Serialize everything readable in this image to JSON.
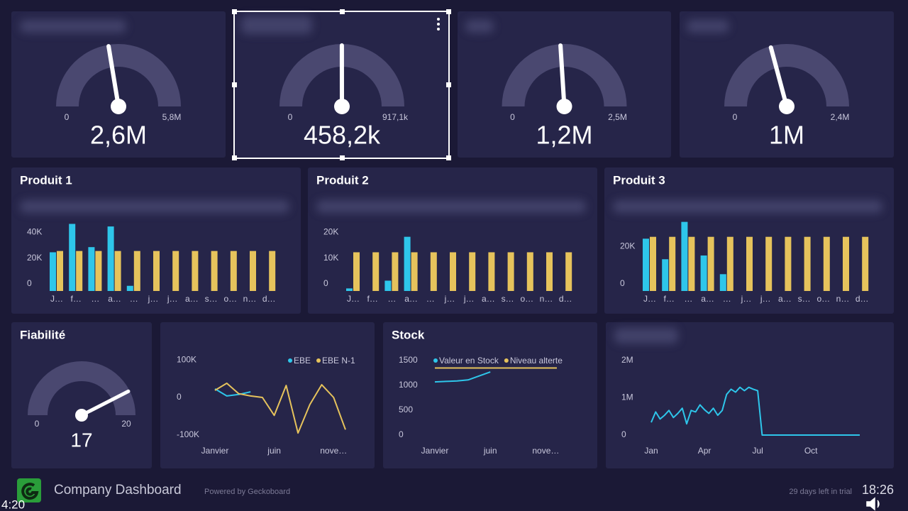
{
  "widgets": [
    {
      "type": "gauge",
      "value": 2600000,
      "value_label": "2,6M",
      "min": 0,
      "max": {
        "value": 5800000,
        "label": "5,8M"
      }
    },
    {
      "type": "gauge",
      "value": 458200,
      "value_label": "458,2k",
      "min": 0,
      "max": {
        "value": 917100,
        "label": "917,1k"
      }
    },
    {
      "type": "gauge",
      "value": 1200000,
      "value_label": "1,2M",
      "min": 0,
      "max": {
        "value": 2500000,
        "label": "2,5M"
      }
    },
    {
      "type": "gauge",
      "value": 1000000,
      "value_label": "1M",
      "min": 0,
      "max": {
        "value": 2400000,
        "label": "2,4M"
      }
    },
    {
      "type": "bar",
      "title": "Produit 1",
      "categories": [
        "J…",
        "f…",
        "…",
        "a…",
        "…",
        "j…",
        "j…",
        "a…",
        "s…",
        "o…",
        "n…",
        "d…"
      ],
      "series": [
        {
          "color": "#2ec6ea",
          "values": [
            30000,
            52000,
            34000,
            50000,
            4000,
            null,
            null,
            null,
            null,
            null,
            null,
            null
          ]
        },
        {
          "color": "#e6c35c",
          "values": [
            31000,
            31000,
            31000,
            31000,
            31000,
            31000,
            31000,
            31000,
            31000,
            31000,
            31000,
            31000
          ]
        }
      ],
      "ylim": [
        0,
        55000
      ],
      "yticks": [
        0,
        {
          "value": 20000,
          "label": "20K"
        },
        {
          "value": 40000,
          "label": "40K"
        }
      ]
    },
    {
      "type": "bar",
      "title": "Produit 2",
      "categories": [
        "J…",
        "f…",
        "…",
        "a…",
        "…",
        "j…",
        "j…",
        "a…",
        "s…",
        "o…",
        "n…",
        "d…"
      ],
      "series": [
        {
          "color": "#2ec6ea",
          "values": [
            1000,
            null,
            4000,
            21000,
            null,
            null,
            null,
            null,
            null,
            null,
            null,
            null
          ]
        },
        {
          "color": "#e6c35c",
          "values": [
            15000,
            15000,
            15000,
            15000,
            15000,
            15000,
            15000,
            15000,
            15000,
            15000,
            15000,
            15000
          ]
        }
      ],
      "ylim": [
        0,
        27500
      ],
      "yticks": [
        0,
        {
          "value": 10000,
          "label": "10K"
        },
        {
          "value": 20000,
          "label": "20K"
        }
      ]
    },
    {
      "type": "bar",
      "title": "Produit 3",
      "categories": [
        "J…",
        "f…",
        "…",
        "a…",
        "…",
        "j…",
        "j…",
        "a…",
        "s…",
        "o…",
        "n…",
        "d…"
      ],
      "series": [
        {
          "color": "#2ec6ea",
          "values": [
            28000,
            17000,
            37000,
            19000,
            9000,
            null,
            null,
            null,
            null,
            null,
            null,
            null
          ]
        },
        {
          "color": "#e6c35c",
          "values": [
            29000,
            29000,
            29000,
            29000,
            29000,
            29000,
            29000,
            29000,
            29000,
            29000,
            29000,
            29000
          ]
        }
      ],
      "ylim": [
        0,
        38000
      ],
      "yticks": [
        0,
        {
          "value": 20000,
          "label": "20K"
        }
      ]
    },
    {
      "type": "gauge",
      "title": "Fiabilité",
      "value": 17,
      "min": 0,
      "max": 20
    },
    {
      "type": "line",
      "categories": [
        "Janvier",
        null,
        null,
        null,
        null,
        "juin",
        null,
        null,
        null,
        null,
        "nove…",
        null
      ],
      "series": [
        {
          "name": "EBE",
          "color": "#2ec6ea",
          "values": [
            23000,
            4000,
            8000,
            15000,
            null,
            null,
            null,
            null,
            null,
            null,
            null,
            null
          ]
        },
        {
          "name": "EBE N-1",
          "color": "#e6c35c",
          "values": [
            19000,
            38000,
            10000,
            4000,
            0,
            -48000,
            32000,
            -95000,
            -19000,
            34000,
            0,
            -86000
          ]
        }
      ],
      "ylim": [
        -110000,
        110000
      ],
      "yticks": [
        {
          "value": 100000,
          "label": "100K"
        },
        0,
        {
          "value": -100000,
          "label": "-100K"
        }
      ],
      "legend": "top-right"
    },
    {
      "type": "line",
      "title": "Stock",
      "categories": [
        "Janvier",
        null,
        null,
        null,
        null,
        "juin",
        null,
        null,
        null,
        null,
        "nove…",
        null
      ],
      "series": [
        {
          "name": "Valeur en Stock",
          "color": "#2ec6ea",
          "values": [
            1070,
            1080,
            1090,
            1110,
            1190,
            1270,
            null,
            null,
            null,
            null,
            null,
            null
          ]
        },
        {
          "name": "Niveau alterte",
          "color": "#e6c35c",
          "values": [
            1350,
            1350,
            1350,
            1350,
            1350,
            1350,
            1350,
            1350,
            1350,
            1350,
            1350,
            1350
          ]
        }
      ],
      "ylim": [
        0,
        1600
      ],
      "yticks": [
        1500,
        1000,
        500,
        0
      ],
      "legend": "top-left"
    },
    {
      "type": "line",
      "categories": [
        "Jan",
        null,
        null,
        null,
        null,
        null,
        null,
        null,
        null,
        null,
        null,
        null,
        "Apr",
        null,
        null,
        null,
        null,
        null,
        null,
        null,
        null,
        null,
        null,
        null,
        "Jul",
        null,
        null,
        null,
        null,
        null,
        null,
        null,
        null,
        null,
        null,
        null,
        "Oct",
        null,
        null,
        null,
        null,
        null,
        null,
        null,
        null,
        null,
        null,
        null
      ],
      "series": [
        {
          "color": "#2ec6ea",
          "values": [
            340000,
            620000,
            430000,
            530000,
            660000,
            470000,
            580000,
            720000,
            300000,
            660000,
            620000,
            810000,
            680000,
            580000,
            720000,
            530000,
            660000,
            1090000,
            1230000,
            1150000,
            1280000,
            1190000,
            1280000,
            1230000,
            1190000,
            0,
            0,
            0,
            0,
            0,
            0,
            0,
            0,
            0,
            0,
            0,
            0,
            0,
            0,
            0,
            0,
            0,
            0,
            0,
            0,
            0,
            0,
            0
          ]
        }
      ],
      "ylim": [
        0,
        2150000
      ],
      "yticks": [
        {
          "value": 2000000,
          "label": "2M"
        },
        {
          "value": 1000000,
          "label": "1M"
        },
        0
      ]
    }
  ],
  "footer": {
    "title": "Company Dashboard",
    "powered": "Powered by Geckoboard",
    "trial": "29 days left in trial",
    "clock": "18:26",
    "video_time": "4:20"
  }
}
